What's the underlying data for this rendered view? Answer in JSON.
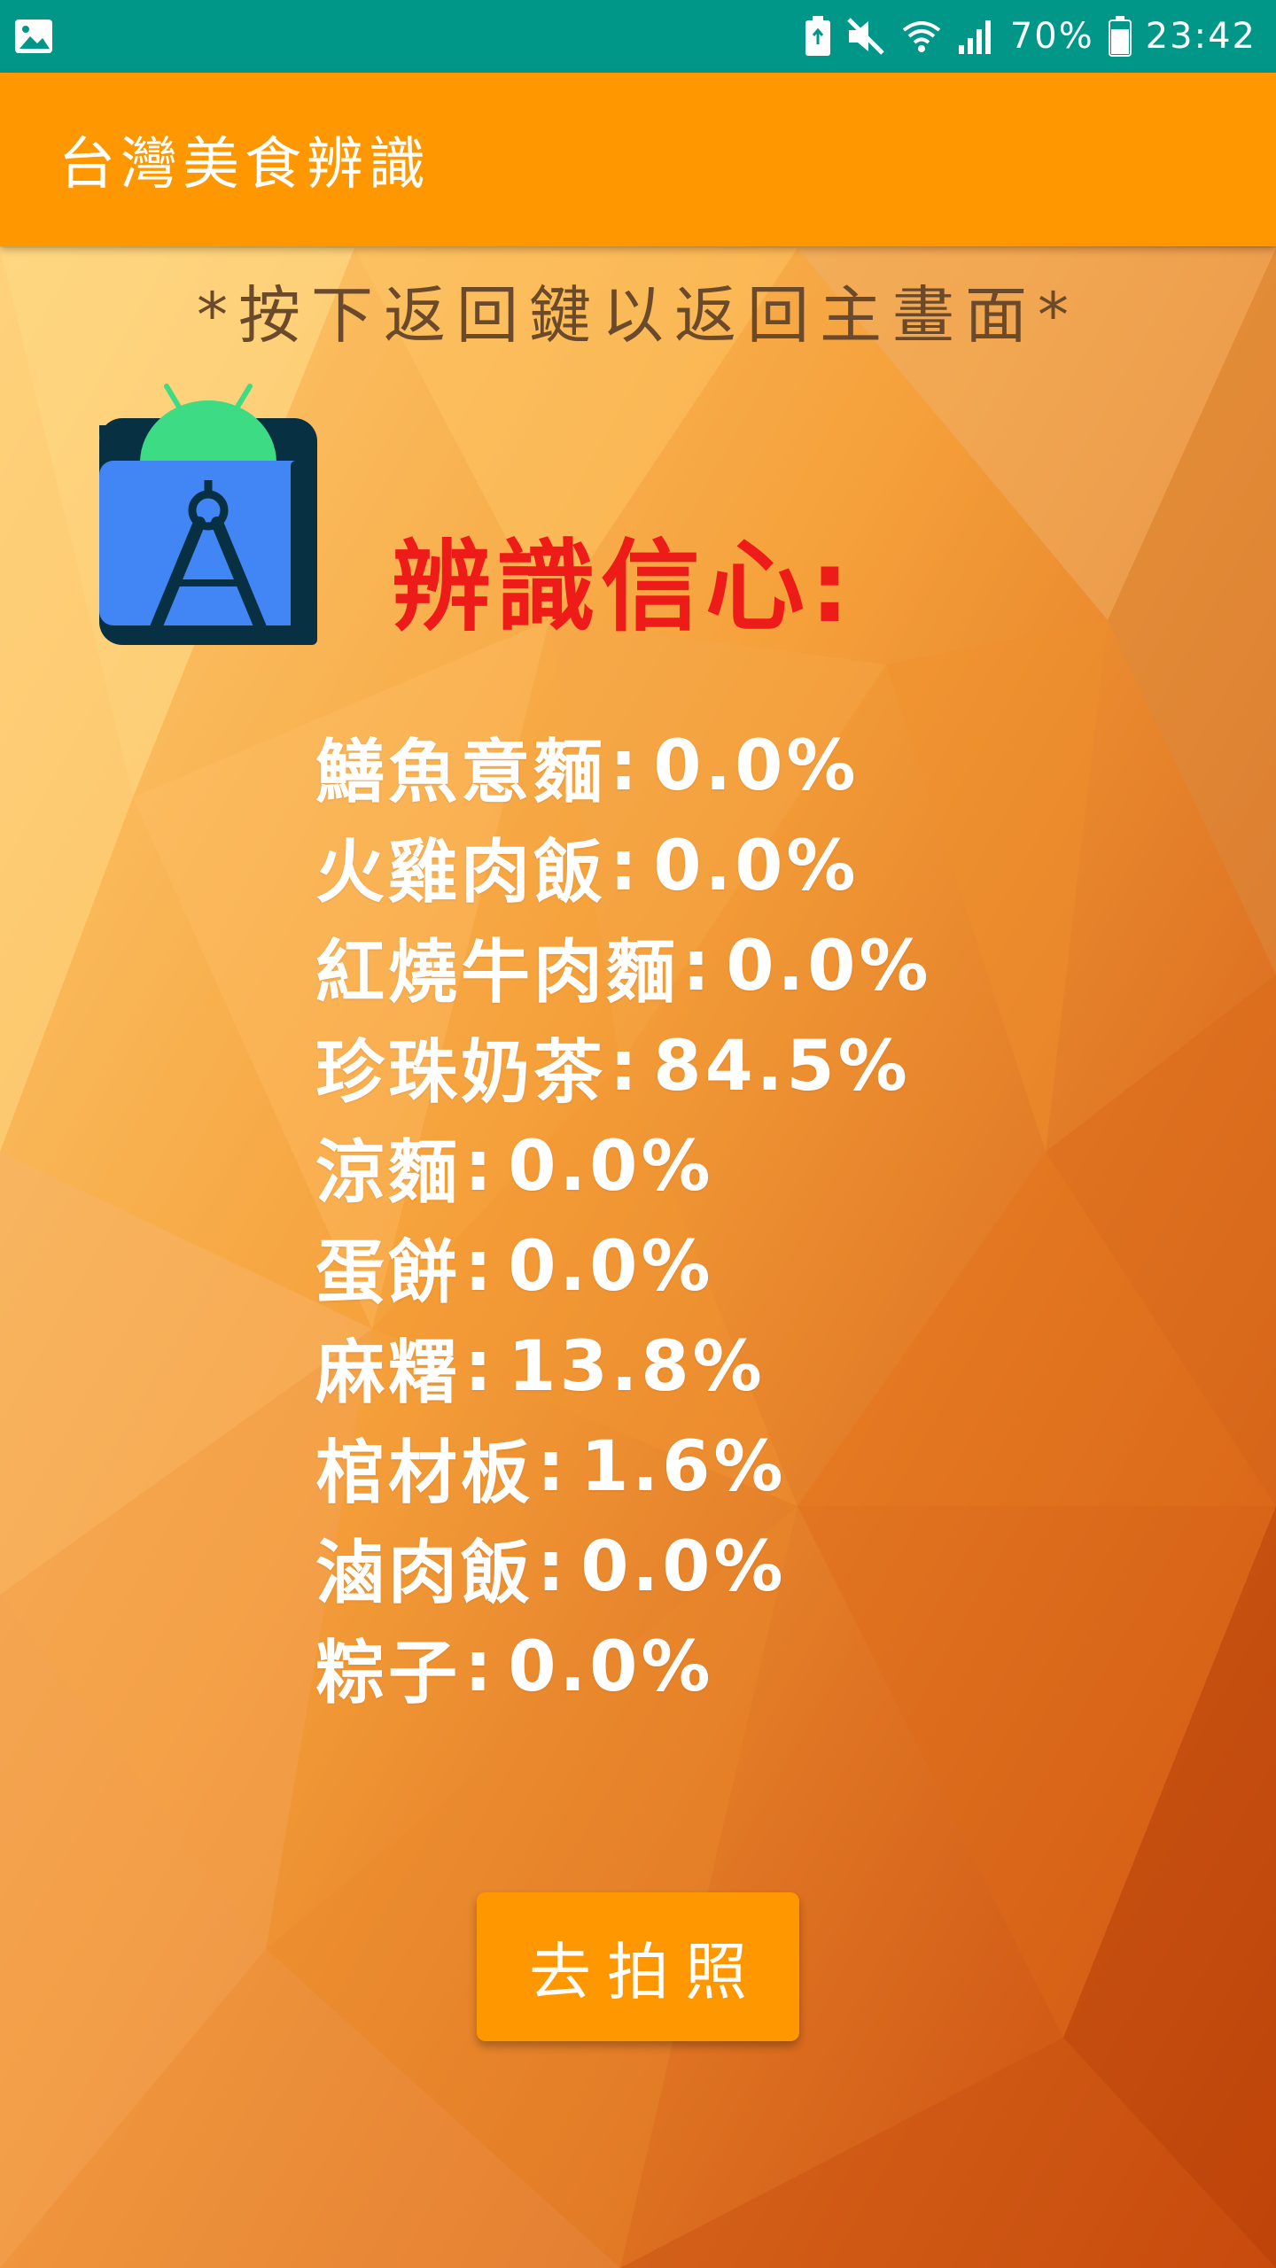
{
  "status_bar": {
    "time": "23:42",
    "battery": "70%",
    "icons": [
      "image-icon",
      "battery-saver-icon",
      "mute-icon",
      "wifi-icon",
      "signal-icon",
      "battery-icon"
    ]
  },
  "app_bar": {
    "title": "台灣美食辨識"
  },
  "hint": "*按下返回鍵以返回主畫面*",
  "confidence_title": "辨識信心:",
  "results": [
    {
      "name": "鱔魚意麵",
      "value": "0.0%"
    },
    {
      "name": "火雞肉飯",
      "value": "0.0%"
    },
    {
      "name": "紅燒牛肉麵",
      "value": "0.0%"
    },
    {
      "name": "珍珠奶茶",
      "value": "84.5%"
    },
    {
      "name": "涼麵",
      "value": "0.0%"
    },
    {
      "name": "蛋餅",
      "value": "0.0%"
    },
    {
      "name": "麻糬",
      "value": "13.8%"
    },
    {
      "name": "棺材板",
      "value": "1.6%"
    },
    {
      "name": "滷肉飯",
      "value": "0.0%"
    },
    {
      "name": "粽子",
      "value": "0.0%"
    }
  ],
  "camera_button": "去拍照",
  "colors": {
    "status_bar": "#009688",
    "app_bar": "#ff9800",
    "confidence_title": "#ee1c18",
    "button": "#ff9800"
  }
}
